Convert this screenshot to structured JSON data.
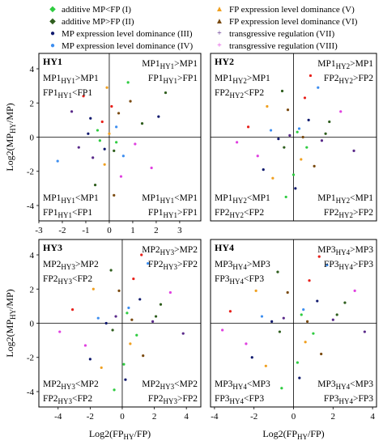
{
  "legend": [
    {
      "label": "additive MP<FP (I)",
      "color": "#2ecc40",
      "marker": "diamond"
    },
    {
      "label": "additive MP>FP (II)",
      "color": "#2f5e1e",
      "marker": "diamond"
    },
    {
      "label": "MP expression level dominance (III)",
      "color": "#101a6e",
      "marker": "circle"
    },
    {
      "label": "MP expression level dominance (IV)",
      "color": "#3d8ef0",
      "marker": "circle"
    },
    {
      "label": "FP expression level dominance (V)",
      "color": "#f0a020",
      "marker": "triangle"
    },
    {
      "label": "FP expression level dominance (VI)",
      "color": "#7a4a10",
      "marker": "triangle"
    },
    {
      "label": "transgressive regulation (VII)",
      "color": "#5a2a8a",
      "marker": "plus"
    },
    {
      "label": "transgressive regulation (VIII)",
      "color": "#e040e0",
      "marker": "plus"
    }
  ],
  "colors": {
    "red_points": "#e8201a"
  },
  "chart_data": [
    {
      "type": "scatter",
      "panel": "HY1",
      "x_ticks": [
        "-3",
        "-2",
        "-1",
        "0",
        "1",
        "2",
        "3"
      ],
      "y_ticks": [
        "-4",
        "-2",
        "0",
        "2",
        "4"
      ],
      "xlim": [
        -3,
        3.9
      ],
      "ylim": [
        -4.9,
        4.9
      ],
      "ylabel": "Log2(MPHY/MP)",
      "quadrants": {
        "tl": [
          "MP1HY1>MP1",
          "FP1HY1<FP1"
        ],
        "tr": [
          "MP1HY1>MP1",
          "FP1HY1>FP1"
        ],
        "bl": [
          "MP1HY1<MP1",
          "FP1HY1<FP1"
        ],
        "br": [
          "MP1HY1<MP1",
          "FP1HY1>FP1"
        ]
      },
      "points": [
        [
          -0.5,
          0.4
        ],
        [
          0.2,
          -0.8
        ],
        [
          -0.8,
          1.1
        ],
        [
          0.3,
          0.6
        ],
        [
          -0.2,
          -1.6
        ],
        [
          0.9,
          2.1
        ],
        [
          -1.3,
          -0.6
        ],
        [
          0.5,
          -2.3
        ],
        [
          0.1,
          1.8
        ],
        [
          -0.4,
          -0.2
        ],
        [
          1.4,
          0.8
        ],
        [
          -0.9,
          0.2
        ],
        [
          0.6,
          -1.1
        ],
        [
          -0.1,
          2.9
        ],
        [
          0.2,
          -3.4
        ],
        [
          -1.6,
          1.5
        ],
        [
          1.1,
          -0.4
        ],
        [
          -0.3,
          0.9
        ],
        [
          0.8,
          3.2
        ],
        [
          -0.6,
          -2.8
        ],
        [
          2.1,
          1.2
        ],
        [
          -2.2,
          -1.4
        ],
        [
          0.0,
          0.2
        ],
        [
          0.4,
          1.4
        ],
        [
          -0.7,
          -1.2
        ],
        [
          1.8,
          -1.8
        ],
        [
          -1.1,
          2.4
        ],
        [
          0.3,
          -0.3
        ],
        [
          2.4,
          2.6
        ],
        [
          -0.2,
          -0.7
        ]
      ]
    },
    {
      "type": "scatter",
      "panel": "HY2",
      "x_ticks": [],
      "y_ticks": [],
      "xlim": [
        -4.4,
        4.4
      ],
      "ylim": [
        -4.9,
        4.9
      ],
      "quadrants": {
        "tl": [
          "MP1HY2>MP1",
          "FP2HY2<FP2"
        ],
        "tr": [
          "MP1HY2>MP1",
          "FP2HY2>FP2"
        ],
        "bl": [
          "MP1HY2<MP1",
          "FP2HY2<FP2"
        ],
        "br": [
          "MP1HY2<MP1",
          "FP2HY2>FP2"
        ]
      },
      "points": [
        [
          0.2,
          0.3
        ],
        [
          -0.5,
          -0.6
        ],
        [
          0.8,
          1.0
        ],
        [
          -1.2,
          0.4
        ],
        [
          0.4,
          -1.3
        ],
        [
          -0.3,
          1.6
        ],
        [
          1.5,
          -0.2
        ],
        [
          -1.9,
          -1.1
        ],
        [
          0.6,
          2.3
        ],
        [
          0.0,
          -2.2
        ],
        [
          1.9,
          0.9
        ],
        [
          -0.8,
          -0.1
        ],
        [
          0.3,
          0.5
        ],
        [
          -1.4,
          1.8
        ],
        [
          1.1,
          -1.7
        ],
        [
          -0.2,
          0.1
        ],
        [
          2.5,
          1.5
        ],
        [
          -2.4,
          0.6
        ],
        [
          0.7,
          -0.6
        ],
        [
          -0.6,
          2.7
        ],
        [
          0.1,
          -3.0
        ],
        [
          1.3,
          2.9
        ],
        [
          -1.1,
          -2.4
        ],
        [
          0.5,
          0.0
        ],
        [
          3.2,
          -0.8
        ],
        [
          -3.0,
          -0.3
        ],
        [
          0.9,
          3.6
        ],
        [
          -0.4,
          -3.5
        ],
        [
          1.7,
          0.2
        ],
        [
          -1.6,
          -1.9
        ]
      ]
    },
    {
      "type": "scatter",
      "panel": "HY3",
      "x_ticks": [
        "-4",
        "-2",
        "0",
        "2",
        "4"
      ],
      "y_ticks": [
        "-4",
        "-2",
        "0",
        "2",
        "4"
      ],
      "xlim": [
        -5.2,
        4.9
      ],
      "ylim": [
        -4.9,
        4.9
      ],
      "xlabel": "Log2(FPHY/FP)",
      "ylabel": "Log2(MPHY/MP)",
      "quadrants": {
        "tl": [
          "MP2HY3>MP2",
          "FP2HY3<FP2"
        ],
        "tr": [
          "MP2HY3>MP2",
          "FP2HY3>FP2"
        ],
        "bl": [
          "MP2HY3<MP2",
          "FP2HY3<FP2"
        ],
        "br": [
          "MP2HY3<MP2",
          "FP2HY3>FP2"
        ]
      },
      "points": [
        [
          0.3,
          0.6
        ],
        [
          -0.6,
          -0.4
        ],
        [
          1.1,
          1.4
        ],
        [
          -1.5,
          0.3
        ],
        [
          0.5,
          -1.2
        ],
        [
          -0.2,
          1.9
        ],
        [
          1.9,
          0.1
        ],
        [
          -2.3,
          -1.3
        ],
        [
          0.7,
          2.6
        ],
        [
          0.1,
          -2.4
        ],
        [
          2.4,
          1.1
        ],
        [
          -1.0,
          0.0
        ],
        [
          0.4,
          0.9
        ],
        [
          -1.8,
          2.0
        ],
        [
          1.3,
          -1.9
        ],
        [
          -0.4,
          0.4
        ],
        [
          3.0,
          1.8
        ],
        [
          -3.1,
          0.8
        ],
        [
          0.9,
          -0.7
        ],
        [
          -0.7,
          3.1
        ],
        [
          0.2,
          -3.3
        ],
        [
          1.6,
          3.5
        ],
        [
          -1.3,
          -2.6
        ],
        [
          0.6,
          0.2
        ],
        [
          3.8,
          -0.6
        ],
        [
          -3.9,
          -0.5
        ],
        [
          1.2,
          4.0
        ],
        [
          -0.5,
          -3.9
        ],
        [
          2.1,
          0.4
        ],
        [
          -2.0,
          -2.1
        ]
      ]
    },
    {
      "type": "scatter",
      "panel": "HY4",
      "x_ticks": [
        "-4",
        "-2",
        "0",
        "2",
        "4"
      ],
      "y_ticks": [],
      "xlim": [
        -4.2,
        4.2
      ],
      "ylim": [
        -4.9,
        4.9
      ],
      "xlabel": "Log2(FPHY/FP)",
      "quadrants": {
        "tl": [
          "MP3HY4>MP3",
          "FP3HY4<FP3"
        ],
        "tr": [
          "MP3HY4>MP3",
          "FP3HY4>FP3"
        ],
        "bl": [
          "MP3HY4<MP3",
          "FP3HY4<FP3"
        ],
        "br": [
          "MP3HY4<MP3",
          "FP3HY4>FP3"
        ]
      },
      "points": [
        [
          0.4,
          0.5
        ],
        [
          -0.7,
          -0.5
        ],
        [
          1.2,
          1.3
        ],
        [
          -1.6,
          0.4
        ],
        [
          0.6,
          -1.1
        ],
        [
          -0.3,
          1.8
        ],
        [
          2.0,
          0.2
        ],
        [
          -2.4,
          -1.2
        ],
        [
          0.8,
          2.5
        ],
        [
          0.2,
          -2.3
        ],
        [
          2.6,
          1.2
        ],
        [
          -1.1,
          0.1
        ],
        [
          0.5,
          0.8
        ],
        [
          -1.9,
          1.9
        ],
        [
          1.4,
          -1.8
        ],
        [
          -0.5,
          0.3
        ],
        [
          3.1,
          1.9
        ],
        [
          -3.2,
          0.7
        ],
        [
          1.0,
          -0.6
        ],
        [
          -0.8,
          3.0
        ],
        [
          0.3,
          -3.2
        ],
        [
          1.7,
          3.4
        ],
        [
          -1.4,
          -2.5
        ],
        [
          0.7,
          0.1
        ],
        [
          3.6,
          -0.5
        ],
        [
          -3.6,
          -0.4
        ],
        [
          1.3,
          3.9
        ],
        [
          -0.6,
          -3.8
        ],
        [
          2.2,
          0.5
        ],
        [
          -2.1,
          -2.0
        ]
      ]
    }
  ]
}
